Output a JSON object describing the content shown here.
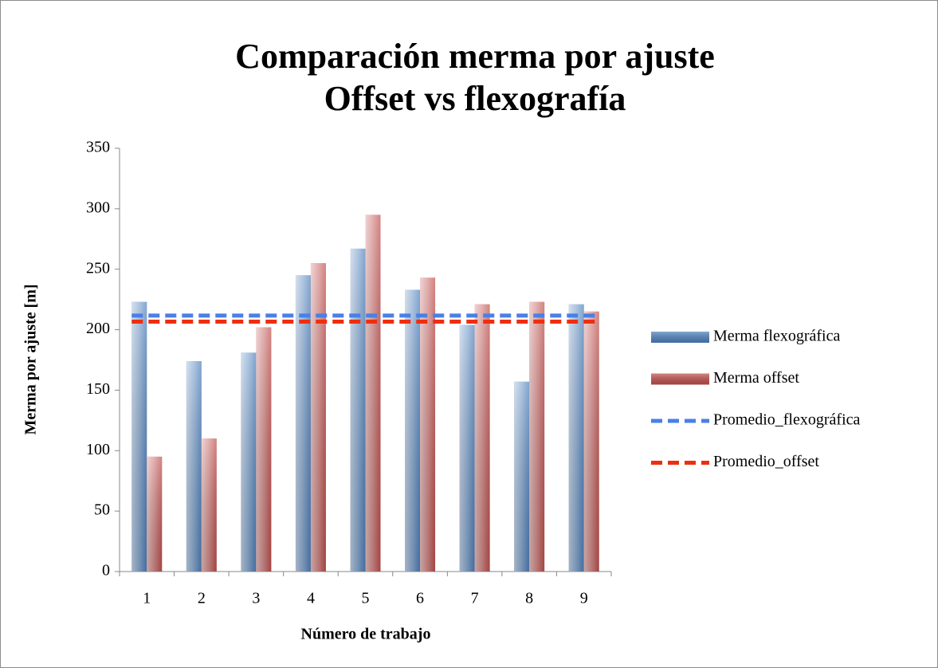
{
  "chart_data": {
    "type": "bar",
    "title": [
      "Comparación merma por ajuste",
      "Offset vs flexografía"
    ],
    "x_label": "Número de trabajo",
    "y_label": "Merma por ajuste [m]",
    "categories": [
      "1",
      "2",
      "3",
      "4",
      "5",
      "6",
      "7",
      "8",
      "9"
    ],
    "series": [
      {
        "name": "Merma flexográfica",
        "color": "#4f81bd",
        "values": [
          223,
          174,
          181,
          245,
          267,
          233,
          204,
          157,
          221
        ]
      },
      {
        "name": "Merma offset",
        "color": "#c0504d",
        "values": [
          95,
          110,
          202,
          255,
          295,
          243,
          221,
          223,
          215
        ]
      }
    ],
    "lines": [
      {
        "name": "Promedio_flexográfica",
        "color": "#4a7fe6",
        "value": 211.7
      },
      {
        "name": "Promedio_offset",
        "color": "#ee2e10",
        "value": 206.6
      }
    ],
    "ylim": [
      0,
      350
    ],
    "yticks": [
      0,
      50,
      100,
      150,
      200,
      250,
      300,
      350
    ],
    "legend": "right"
  }
}
